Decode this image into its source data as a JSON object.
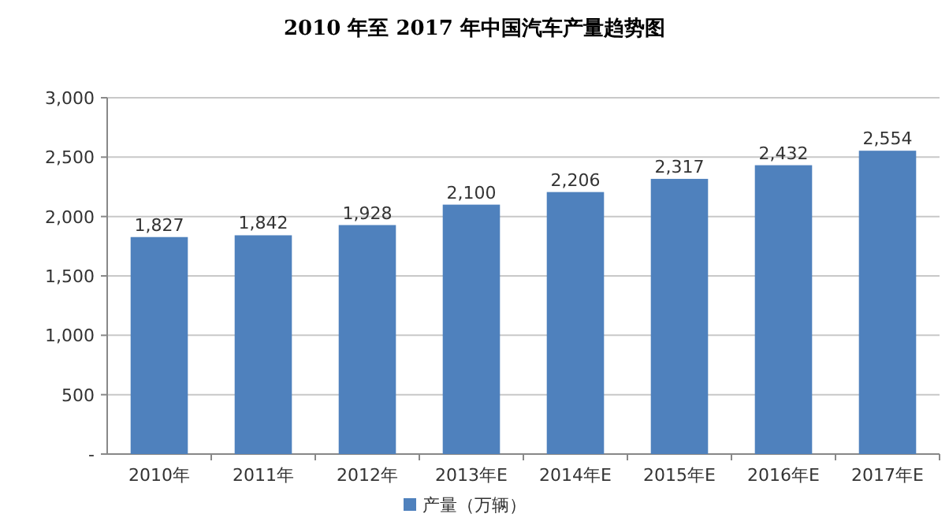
{
  "chart_data": {
    "type": "bar",
    "title": "2010 年至 2017 年中国汽车产量趋势图",
    "categories": [
      "2010年",
      "2011年",
      "2012年",
      "2013年E",
      "2014年E",
      "2015年E",
      "2016年E",
      "2017年E"
    ],
    "series": [
      {
        "name": "产量（万辆）",
        "color": "#4f81bd",
        "values": [
          1827,
          1842,
          1928,
          2100,
          2206,
          2317,
          2432,
          2554
        ],
        "value_labels": [
          "1,827",
          "1,842",
          "1,928",
          "2,100",
          "2,206",
          "2,317",
          "2,432",
          "2,554"
        ]
      }
    ],
    "ylim": [
      0,
      3000
    ],
    "yticks": [
      {
        "value": 0,
        "label": "-"
      },
      {
        "value": 500,
        "label": "500"
      },
      {
        "value": 1000,
        "label": "1,000"
      },
      {
        "value": 1500,
        "label": "1,500"
      },
      {
        "value": 2000,
        "label": "2,000"
      },
      {
        "value": 2500,
        "label": "2,500"
      },
      {
        "value": 3000,
        "label": "3,000"
      }
    ],
    "grid": "y",
    "legend": "bottom"
  }
}
